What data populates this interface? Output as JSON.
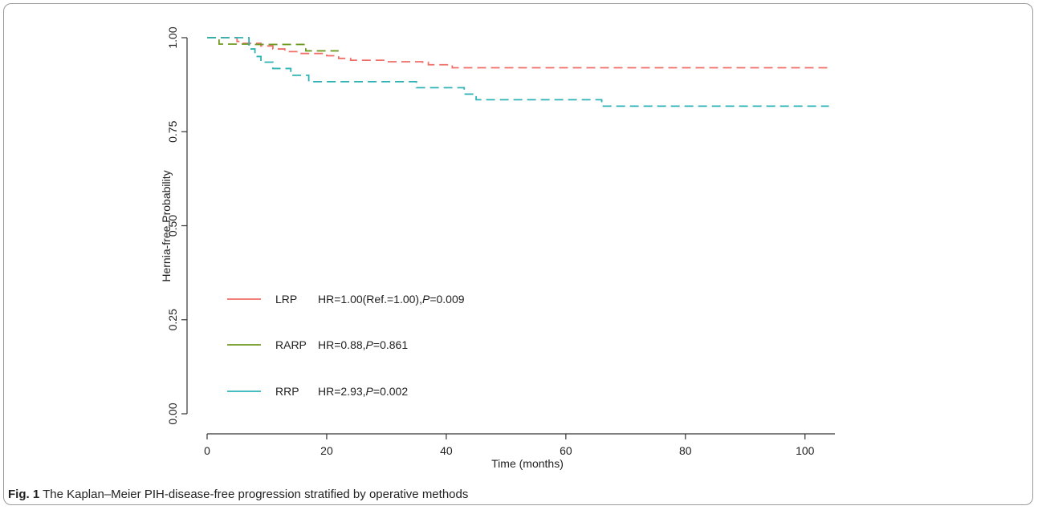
{
  "caption": {
    "label": "Fig. 1",
    "text": "The Kaplan–Meier PIH-disease-free progression stratified by operative methods"
  },
  "chart_data": {
    "type": "line",
    "subtype": "kaplan-meier step curves",
    "xlabel": "Time (months)",
    "ylabel": "Hernia-free Probability",
    "xlim": [
      0,
      105
    ],
    "ylim": [
      0,
      1
    ],
    "x_ticks": [
      0,
      20,
      40,
      60,
      80,
      100
    ],
    "y_ticks": [
      0.0,
      0.25,
      0.5,
      0.75,
      1.0
    ],
    "y_tick_labels": [
      "0.00",
      "0.25",
      "0.50",
      "0.75",
      "1.00"
    ],
    "grid": false,
    "legend_position": "bottom-left",
    "series": [
      {
        "name": "LRP",
        "stat": "HR=1.00(Ref.=1.00),",
        "p_label": "P",
        "p_value": "=0.009",
        "color": "#ef6f67",
        "steps": [
          [
            0,
            1.0
          ],
          [
            5,
            0.99
          ],
          [
            6,
            0.985
          ],
          [
            9,
            0.978
          ],
          [
            11,
            0.97
          ],
          [
            13,
            0.963
          ],
          [
            15,
            0.958
          ],
          [
            20,
            0.952
          ],
          [
            22,
            0.945
          ],
          [
            24,
            0.94
          ],
          [
            30,
            0.936
          ],
          [
            36,
            0.935
          ],
          [
            37,
            0.928
          ],
          [
            41,
            0.92
          ],
          [
            104,
            0.92
          ]
        ]
      },
      {
        "name": "RARP",
        "stat": "HR=0.88,",
        "p_label": "P",
        "p_value": "=0.861",
        "color": "#6f9a22",
        "steps": [
          [
            0,
            1.0
          ],
          [
            2,
            0.983
          ],
          [
            7,
            0.982
          ],
          [
            16.5,
            0.965
          ],
          [
            22,
            0.965
          ]
        ]
      },
      {
        "name": "RRP",
        "stat": "HR=2.93,",
        "p_label": "P",
        "p_value": "=0.002",
        "color": "#2cb2b4",
        "steps": [
          [
            0,
            1.0
          ],
          [
            7,
            0.97
          ],
          [
            8,
            0.95
          ],
          [
            9,
            0.935
          ],
          [
            11,
            0.918
          ],
          [
            14,
            0.9
          ],
          [
            17,
            0.883
          ],
          [
            35,
            0.867
          ],
          [
            43,
            0.85
          ],
          [
            45,
            0.835
          ],
          [
            66,
            0.818
          ],
          [
            104,
            0.818
          ]
        ]
      }
    ]
  }
}
